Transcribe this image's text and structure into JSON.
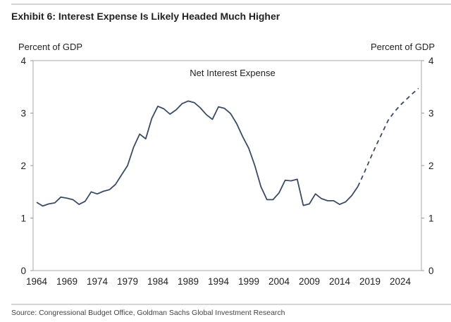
{
  "title": "Exhibit 6: Interest Expense Is Likely Headed Much Higher",
  "source": "Source: Congressional Budget Office, Goldman Sachs Global Investment Research",
  "chart_data": {
    "type": "line",
    "title": "",
    "annotation": "Net Interest Expense",
    "ylabel_left": "Percent of GDP",
    "ylabel_right": "Percent of GDP",
    "xlabel": "",
    "ylim": [
      0,
      4
    ],
    "yticks": [
      "0",
      "1",
      "2",
      "3",
      "4"
    ],
    "xticks": [
      "1964",
      "1969",
      "1974",
      "1979",
      "1984",
      "1989",
      "1994",
      "1999",
      "2004",
      "2009",
      "2014",
      "2019",
      "2024"
    ],
    "xlim": [
      1964,
      2027
    ],
    "grid": false,
    "line_color": "#3b4a63",
    "series": [
      {
        "style": "solid",
        "x": [
          1964,
          1965,
          1966,
          1967,
          1968,
          1969,
          1970,
          1971,
          1972,
          1973,
          1974,
          1975,
          1976,
          1977,
          1978,
          1979,
          1980,
          1981,
          1982,
          1983,
          1984,
          1985,
          1986,
          1987,
          1988,
          1989,
          1990,
          1991,
          1992,
          1993,
          1994,
          1995,
          1996,
          1997,
          1998,
          1999,
          2000,
          2001,
          2002,
          2003,
          2004,
          2005,
          2006,
          2007,
          2008,
          2009,
          2010,
          2011,
          2012,
          2013,
          2014,
          2015,
          2016,
          2017
        ],
        "y": [
          1.3,
          1.23,
          1.27,
          1.29,
          1.4,
          1.38,
          1.35,
          1.26,
          1.32,
          1.5,
          1.46,
          1.51,
          1.54,
          1.64,
          1.82,
          2.0,
          2.35,
          2.6,
          2.51,
          2.9,
          3.13,
          3.08,
          2.98,
          3.06,
          3.18,
          3.23,
          3.2,
          3.1,
          2.97,
          2.88,
          3.12,
          3.09,
          2.99,
          2.8,
          2.55,
          2.33,
          2.0,
          1.6,
          1.35,
          1.35,
          1.48,
          1.72,
          1.71,
          1.74,
          1.24,
          1.27,
          1.46,
          1.37,
          1.33,
          1.33,
          1.26,
          1.31,
          1.43,
          1.6
        ]
      },
      {
        "style": "dashed",
        "x": [
          2017,
          2018,
          2019,
          2020,
          2021,
          2022,
          2023,
          2024,
          2025,
          2026,
          2027
        ],
        "y": [
          1.6,
          1.85,
          2.12,
          2.38,
          2.62,
          2.86,
          3.02,
          3.15,
          3.26,
          3.37,
          3.47
        ]
      }
    ]
  }
}
